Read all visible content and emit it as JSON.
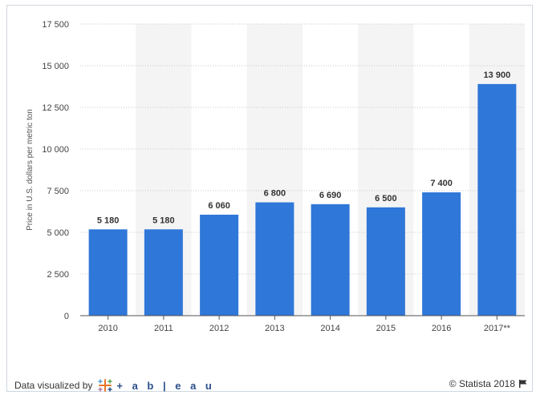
{
  "chart_data": {
    "type": "bar",
    "categories": [
      "2010",
      "2011",
      "2012",
      "2013",
      "2014",
      "2015",
      "2016",
      "2017**"
    ],
    "values": [
      5180,
      5180,
      6060,
      6800,
      6690,
      6500,
      7400,
      13900
    ],
    "value_labels": [
      "5 180",
      "5 180",
      "6 060",
      "6 800",
      "6 690",
      "6 500",
      "7 400",
      "13 900"
    ],
    "ylabel": "Price in U.S. dollars per metric ton",
    "ylim": [
      0,
      17500
    ],
    "yticks": [
      0,
      2500,
      5000,
      7500,
      10000,
      12500,
      15000,
      17500
    ],
    "ytick_labels": [
      "0",
      "2 500",
      "5 000",
      "7 500",
      "10 000",
      "12 500",
      "15 000",
      "17 500"
    ],
    "bar_color": "#2f77d8",
    "grid": true,
    "alternate_column_shading": true
  },
  "footer": {
    "left_text": "Data visualized by",
    "tableau_word": "+ a b | e a u",
    "right_text": "© Statista 2018"
  },
  "icons": {
    "tableau": "tableau-logo-icon",
    "flag": "flag-icon"
  }
}
